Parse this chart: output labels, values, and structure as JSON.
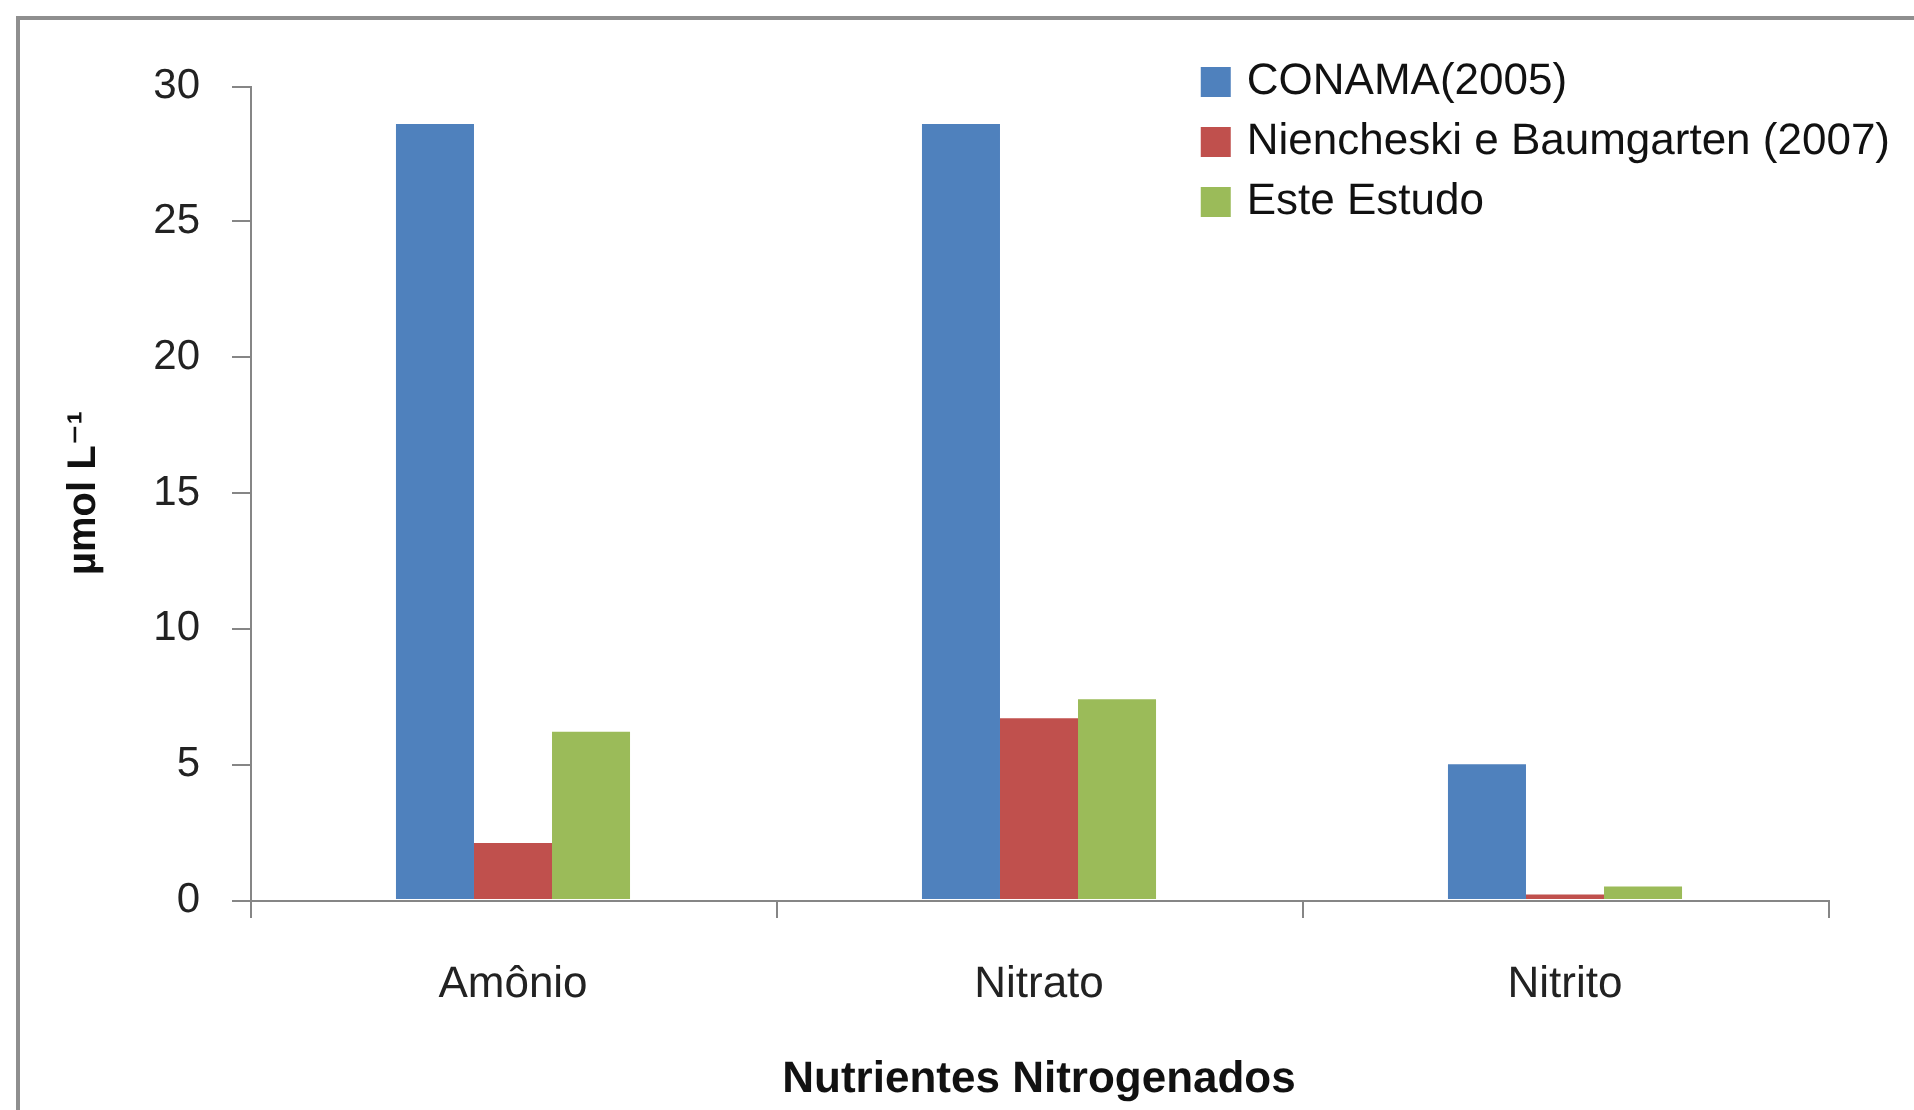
{
  "chart_data": {
    "type": "bar",
    "xlabel": "Nutrientes Nitrogenados",
    "ylabel": "µmol L⁻¹",
    "categories": [
      "Amônio",
      "Nitrato",
      "Nitrito"
    ],
    "series": [
      {
        "name": "CONAMA(2005)",
        "color": "#4f81bd",
        "values": [
          28.6,
          28.6,
          5.0
        ]
      },
      {
        "name": "Niencheski e Baumgarten (2007)",
        "color": "#c0504d",
        "values": [
          2.1,
          6.7,
          0.2
        ]
      },
      {
        "name": "Este Estudo",
        "color": "#9bbb59",
        "values": [
          6.2,
          7.4,
          0.5
        ]
      }
    ],
    "ylim": [
      0,
      30
    ],
    "yticks": [
      0,
      5,
      10,
      15,
      20,
      25,
      30
    ],
    "legend": "top right"
  }
}
